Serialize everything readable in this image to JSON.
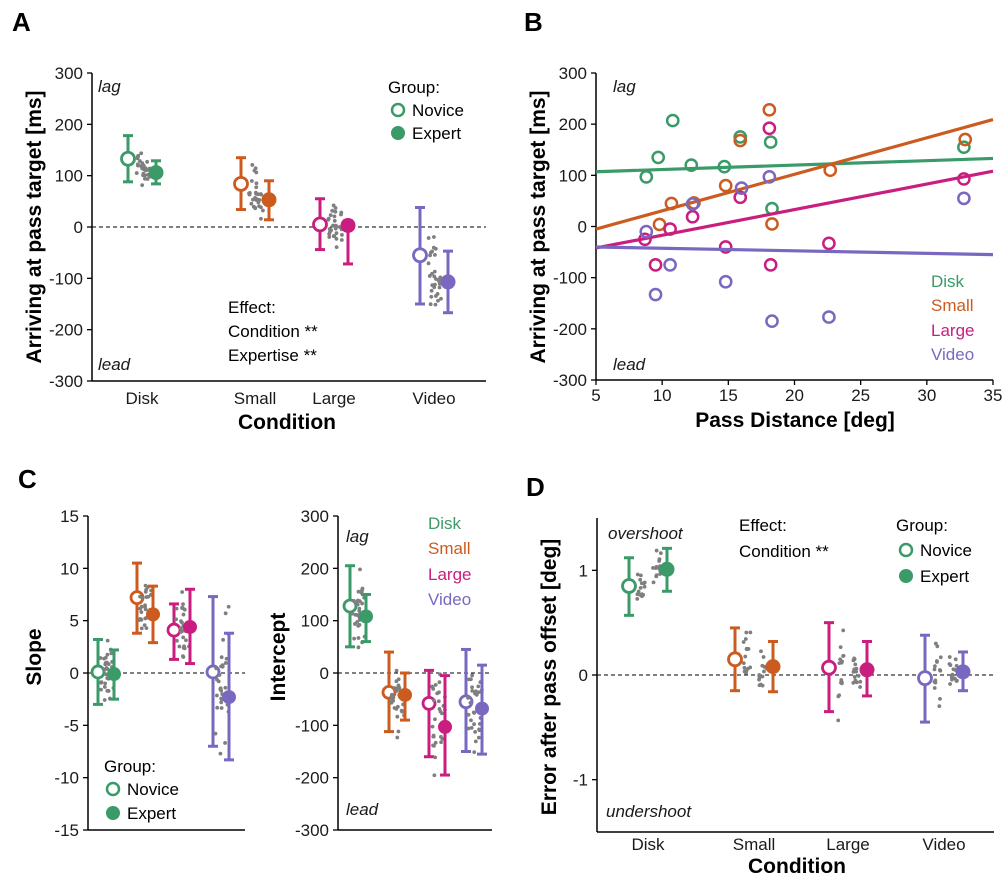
{
  "colors": {
    "disk": "#3a9a68",
    "small": "#cc5b1f",
    "large": "#c91e7f",
    "video": "#7a68c0",
    "dots": "#7f7f7f"
  },
  "panel_letters": {
    "a": "A",
    "b": "B",
    "c": "C",
    "d": "D"
  },
  "chart_data": [
    {
      "id": "A",
      "type": "scatter",
      "title": "",
      "xlabel": "Condition",
      "ylabel": "Arriving at pass target [ms]",
      "categories": [
        "Disk",
        "Small",
        "Large",
        "Video"
      ],
      "ylim": [
        -300,
        300
      ],
      "yticks": [
        "300",
        "200",
        "100",
        "0",
        "-100",
        "-200",
        "-300"
      ],
      "reference_line": 0,
      "corner_labels": {
        "top": "lag",
        "bottom": "lead"
      },
      "legend": {
        "title": "Group:",
        "entries": [
          "Novice",
          "Expert"
        ],
        "position": "top-right"
      },
      "annotation": [
        "Effect:",
        "Condition **",
        "Expertise **"
      ],
      "series": [
        {
          "name": "Novice",
          "marker": "open",
          "means": [
            133,
            84,
            5,
            -55
          ],
          "ci_low": [
            88,
            34,
            -44,
            -150
          ],
          "ci_high": [
            178,
            135,
            55,
            38
          ]
        },
        {
          "name": "Expert",
          "marker": "filled",
          "means": [
            106,
            53,
            3,
            -107
          ],
          "ci_low": [
            84,
            14,
            -72,
            -167
          ],
          "ci_high": [
            129,
            90,
            12,
            -47
          ]
        }
      ],
      "individual_points_shown": true
    },
    {
      "id": "B",
      "type": "scatter",
      "title": "",
      "xlabel": "Pass Distance [deg]",
      "ylabel": "Arriving at pass target [ms]",
      "xlim": [
        5,
        35
      ],
      "ylim": [
        -300,
        300
      ],
      "xticks": [
        "5",
        "10",
        "15",
        "20",
        "25",
        "30",
        "35"
      ],
      "yticks": [
        "300",
        "200",
        "100",
        "0",
        "-100",
        "-200",
        "-300"
      ],
      "corner_labels": {
        "top": "lag",
        "bottom": "lead"
      },
      "legend": {
        "entries": [
          "Disk",
          "Small",
          "Large",
          "Video"
        ],
        "position": "bottom-right"
      },
      "series": [
        {
          "name": "Disk",
          "points": [
            [
              8.8,
              97
            ],
            [
              9.7,
              135
            ],
            [
              10.8,
              207
            ],
            [
              12.2,
              120
            ],
            [
              14.7,
              117
            ],
            [
              15.9,
              175
            ],
            [
              18.2,
              165
            ],
            [
              18.3,
              35
            ],
            [
              32.8,
              155
            ]
          ],
          "fit": [
            [
              5,
              107
            ],
            [
              35,
              133
            ]
          ]
        },
        {
          "name": "Small",
          "points": [
            [
              9.8,
              4
            ],
            [
              10.7,
              45
            ],
            [
              12.4,
              46
            ],
            [
              14.8,
              80
            ],
            [
              15.9,
              168
            ],
            [
              18.1,
              228
            ],
            [
              18.3,
              5
            ],
            [
              22.7,
              110
            ],
            [
              32.9,
              170
            ]
          ],
          "fit": [
            [
              5,
              -5
            ],
            [
              35,
              209
            ]
          ]
        },
        {
          "name": "Large",
          "points": [
            [
              8.7,
              -25
            ],
            [
              9.5,
              -75
            ],
            [
              10.6,
              -5
            ],
            [
              12.3,
              19
            ],
            [
              14.8,
              -40
            ],
            [
              15.9,
              57
            ],
            [
              18.1,
              192
            ],
            [
              18.2,
              -75
            ],
            [
              22.6,
              -33
            ],
            [
              32.8,
              93
            ]
          ],
          "fit": [
            [
              5,
              -42
            ],
            [
              35,
              108
            ]
          ]
        },
        {
          "name": "Video",
          "points": [
            [
              8.8,
              -10
            ],
            [
              9.5,
              -133
            ],
            [
              10.6,
              -75
            ],
            [
              12.3,
              44
            ],
            [
              14.8,
              -108
            ],
            [
              16.0,
              75
            ],
            [
              18.1,
              97
            ],
            [
              18.3,
              -185
            ],
            [
              22.6,
              -177
            ],
            [
              32.8,
              55
            ]
          ],
          "fit": [
            [
              5,
              -40
            ],
            [
              35,
              -55
            ]
          ]
        }
      ]
    },
    {
      "id": "C-slope",
      "type": "scatter",
      "title": "",
      "xlabel": "",
      "ylabel": "Slope",
      "categories": [
        "Disk",
        "Small",
        "Large",
        "Video"
      ],
      "ylim": [
        -15,
        15
      ],
      "yticks": [
        "15",
        "10",
        "5",
        "0",
        "-5",
        "-10",
        "-15"
      ],
      "reference_line": 0,
      "legend": {
        "title": "Group:",
        "entries": [
          "Novice",
          "Expert"
        ],
        "position": "bottom-left"
      },
      "series": [
        {
          "name": "Novice",
          "marker": "open",
          "means": [
            0.1,
            7.2,
            4.1,
            0.1
          ],
          "ci_low": [
            -3.0,
            3.8,
            1.3,
            -7.0
          ],
          "ci_high": [
            3.2,
            10.5,
            6.6,
            7.3
          ]
        },
        {
          "name": "Expert",
          "marker": "filled",
          "means": [
            -0.1,
            5.6,
            4.4,
            -2.3
          ],
          "ci_low": [
            -2.5,
            2.9,
            0.9,
            -8.3
          ],
          "ci_high": [
            2.2,
            8.3,
            8.0,
            3.8
          ]
        }
      ],
      "individual_points_shown": true
    },
    {
      "id": "C-intercept",
      "type": "scatter",
      "title": "",
      "xlabel": "",
      "ylabel": "Intercept",
      "categories": [
        "Disk",
        "Small",
        "Large",
        "Video"
      ],
      "ylim": [
        -300,
        300
      ],
      "yticks": [
        "300",
        "200",
        "100",
        "0",
        "-100",
        "-200",
        "-300"
      ],
      "reference_line": 0,
      "corner_labels": {
        "top": "lag",
        "bottom": "lead"
      },
      "legend": {
        "entries": [
          "Disk",
          "Small",
          "Large",
          "Video"
        ],
        "position": "top-right"
      },
      "series": [
        {
          "name": "Novice",
          "marker": "open",
          "means": [
            128,
            -37,
            -58,
            -55
          ],
          "ci_low": [
            50,
            -112,
            -160,
            -150
          ],
          "ci_high": [
            205,
            40,
            5,
            45
          ]
        },
        {
          "name": "Expert",
          "marker": "filled",
          "means": [
            108,
            -42,
            -103,
            -68
          ],
          "ci_low": [
            60,
            -90,
            -195,
            -155
          ],
          "ci_high": [
            150,
            0,
            -5,
            15
          ]
        }
      ],
      "individual_points_shown": true
    },
    {
      "id": "D",
      "type": "scatter",
      "title": "",
      "xlabel": "Condition",
      "ylabel": "Error after pass offset [deg]",
      "categories": [
        "Disk",
        "Small",
        "Large",
        "Video"
      ],
      "ylim": [
        -1.5,
        1.5
      ],
      "yticks": [
        "1",
        "0",
        "-1"
      ],
      "yticks_values": [
        1,
        0,
        -1
      ],
      "reference_line": 0,
      "corner_labels": {
        "top": "overshoot",
        "bottom": "undershoot"
      },
      "legend": {
        "title": "Group:",
        "entries": [
          "Novice",
          "Expert"
        ],
        "position": "top-right"
      },
      "annotation": [
        "Effect:",
        "Condition **"
      ],
      "series": [
        {
          "name": "Novice",
          "marker": "open",
          "means": [
            0.85,
            0.15,
            0.07,
            -0.03
          ],
          "ci_low": [
            0.57,
            -0.15,
            -0.35,
            -0.45
          ],
          "ci_high": [
            1.12,
            0.45,
            0.5,
            0.38
          ]
        },
        {
          "name": "Expert",
          "marker": "filled",
          "means": [
            1.01,
            0.08,
            0.05,
            0.03
          ],
          "ci_low": [
            0.8,
            -0.16,
            -0.2,
            -0.15
          ],
          "ci_high": [
            1.21,
            0.32,
            0.32,
            0.22
          ]
        }
      ],
      "individual_points_shown": true
    }
  ]
}
